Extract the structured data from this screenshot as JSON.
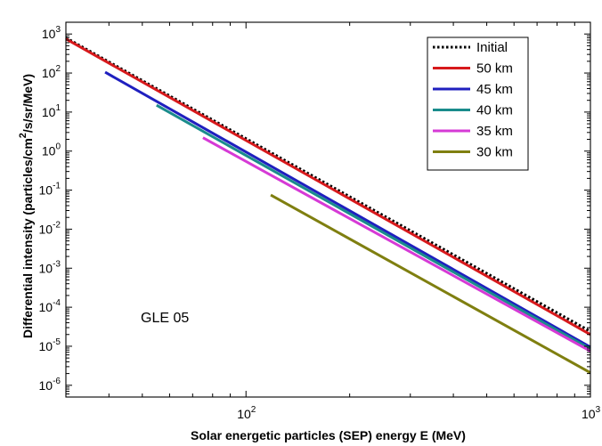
{
  "chart_data": {
    "type": "line",
    "xlabel": "Solar energetic particles (SEP) energy E (MeV)",
    "ylabel_main": "Differential intensity (particles/cm",
    "ylabel_sup": "2",
    "ylabel_tail": "/s/sr/MeV)",
    "x_scale": "log",
    "y_scale": "log",
    "xlim": [
      30,
      1000
    ],
    "ylim": [
      5e-07,
      2000
    ],
    "x_ticks": [
      {
        "value": 100,
        "base": "10",
        "exp": "2"
      },
      {
        "value": 1000,
        "base": "10",
        "exp": "3"
      }
    ],
    "y_ticks": [
      {
        "value": 1e-06,
        "base": "10",
        "exp": "-6"
      },
      {
        "value": 1e-05,
        "base": "10",
        "exp": "-5"
      },
      {
        "value": 0.0001,
        "base": "10",
        "exp": "-4"
      },
      {
        "value": 0.001,
        "base": "10",
        "exp": "-3"
      },
      {
        "value": 0.01,
        "base": "10",
        "exp": "-2"
      },
      {
        "value": 0.1,
        "base": "10",
        "exp": "-1"
      },
      {
        "value": 1,
        "base": "10",
        "exp": "0"
      },
      {
        "value": 10,
        "base": "10",
        "exp": "1"
      },
      {
        "value": 100,
        "base": "10",
        "exp": "2"
      },
      {
        "value": 1000,
        "base": "10",
        "exp": "3"
      }
    ],
    "annotation": "GLE 05",
    "legend_position": "top-right",
    "grid": false,
    "series": [
      {
        "name": "Initial",
        "color": "#000000",
        "dash": "dotted",
        "x": [
          30,
          1000
        ],
        "y": [
          800,
          2.4e-05
        ]
      },
      {
        "name": "50 km",
        "color": "#d7191c",
        "dash": "solid",
        "x": [
          30,
          1000
        ],
        "y": [
          750,
          2e-05
        ]
      },
      {
        "name": "45 km",
        "color": "#1f1fbf",
        "dash": "solid",
        "x": [
          39,
          1000
        ],
        "y": [
          105,
          9.5e-06
        ]
      },
      {
        "name": "40 km",
        "color": "#1a8c8c",
        "dash": "solid",
        "x": [
          55,
          1000
        ],
        "y": [
          15,
          8.5e-06
        ]
      },
      {
        "name": "35 km",
        "color": "#d63ad6",
        "dash": "solid",
        "x": [
          75,
          1000
        ],
        "y": [
          2.2,
          7.5e-06
        ]
      },
      {
        "name": "30 km",
        "color": "#7f7f10",
        "dash": "solid",
        "x": [
          118,
          1000
        ],
        "y": [
          0.075,
          2.1e-06
        ]
      }
    ]
  }
}
